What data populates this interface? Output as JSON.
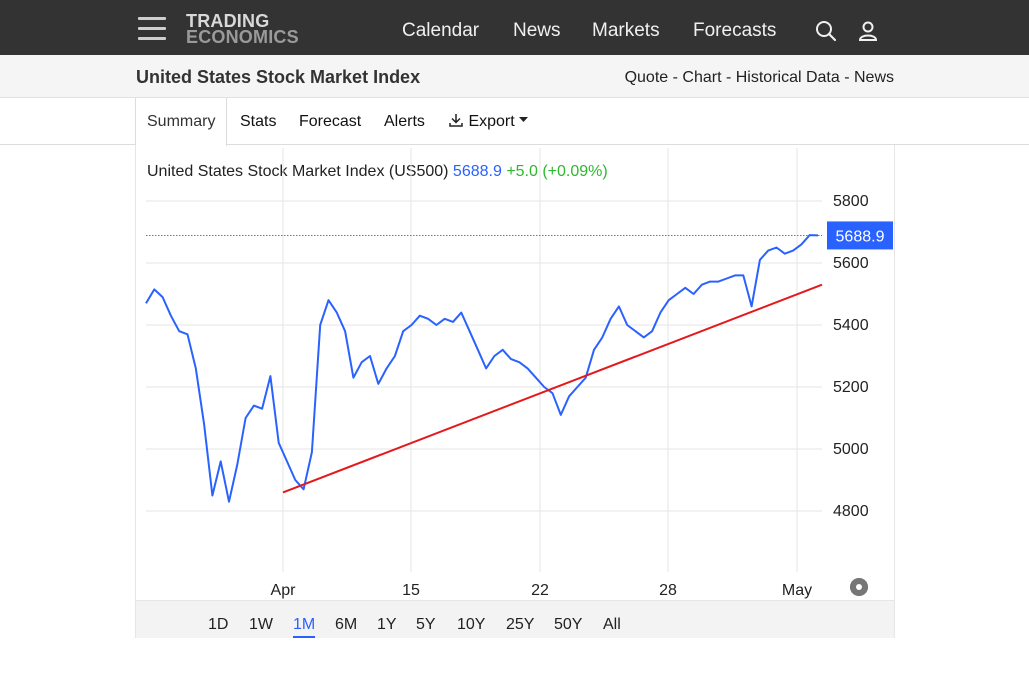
{
  "brand": {
    "line1": "TRADING",
    "line2": "ECONOMICS"
  },
  "nav": {
    "calendar": "Calendar",
    "news": "News",
    "markets": "Markets",
    "forecasts": "Forecasts",
    "search_icon": "search-icon",
    "user_icon": "user-icon",
    "menu_icon": "hamburger-menu-icon"
  },
  "page": {
    "title": "United States Stock Market Index"
  },
  "sublinks": {
    "quote": "Quote",
    "chart": "Chart",
    "historical": "Historical Data",
    "news": "News",
    "sep": " - "
  },
  "tabs": {
    "summary": "Summary",
    "stats": "Stats",
    "forecast": "Forecast",
    "alerts": "Alerts",
    "export": "Export"
  },
  "quote": {
    "name": "United States Stock Market Index (US500)",
    "price": "5688.9",
    "change": "+5.0 (+0.09%)"
  },
  "ranges": {
    "items": [
      "1D",
      "1W",
      "1M",
      "6M",
      "1Y",
      "5Y",
      "10Y",
      "25Y",
      "50Y",
      "All"
    ],
    "active": "1M"
  },
  "colors": {
    "line": "#2962ff",
    "trend": "#e31a1c",
    "badge": "#2962ff",
    "up": "#2eb82e"
  },
  "chart_data": {
    "type": "line",
    "title": "United States Stock Market Index (US500)",
    "x_tick_labels": [
      "Apr",
      "15",
      "22",
      "28",
      "May"
    ],
    "y_ticks": [
      4800,
      5000,
      5200,
      5400,
      5600,
      5800
    ],
    "ylim": [
      4650,
      5850
    ],
    "last_value": 5688.9,
    "last_label": "5688.9",
    "grid": true,
    "series": [
      {
        "values": [
          5470,
          5515,
          5490,
          5430,
          5380,
          5370,
          5260,
          5080,
          4850,
          4960,
          4830,
          4950,
          5100,
          5140,
          5130,
          5235,
          5020,
          4960,
          4900,
          4870,
          4990,
          5400,
          5480,
          5440,
          5380,
          5230,
          5280,
          5300,
          5210,
          5260,
          5300,
          5380,
          5400,
          5430,
          5420,
          5400,
          5420,
          5410,
          5440,
          5380,
          5320,
          5260,
          5300,
          5320,
          5290,
          5280,
          5260,
          5230,
          5200,
          5180,
          5110,
          5170,
          5200,
          5230,
          5320,
          5360,
          5420,
          5460,
          5400,
          5380,
          5360,
          5380,
          5440,
          5480,
          5500,
          5520,
          5500,
          5530,
          5540,
          5540,
          5550,
          5560,
          5560,
          5460,
          5610,
          5640,
          5650,
          5630,
          5640,
          5660,
          5690,
          5689
        ]
      },
      {
        "name": "",
        "values": [
          4860,
          5530
        ]
      }
    ]
  }
}
